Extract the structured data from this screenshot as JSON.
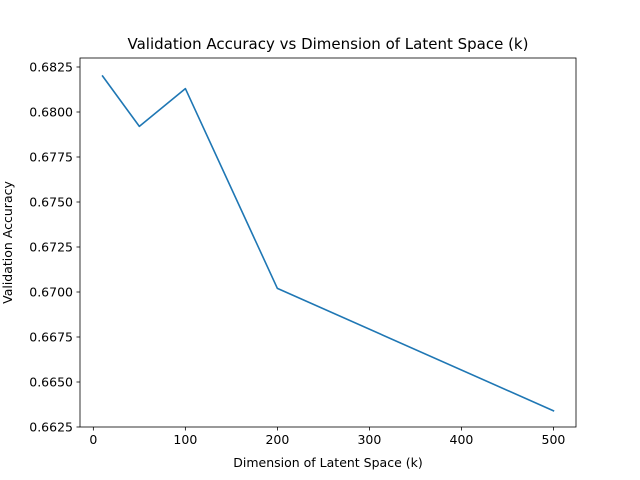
{
  "chart_data": {
    "type": "line",
    "title": "Validation Accuracy vs Dimension of Latent Space (k)",
    "xlabel": "Dimension of Latent Space (k)",
    "ylabel": "Validation Accuracy",
    "x": [
      10,
      50,
      100,
      200,
      500
    ],
    "series": [
      {
        "values": [
          0.682,
          0.6792,
          0.6813,
          0.6702,
          0.6634
        ],
        "color": "#1f77b4"
      }
    ],
    "xlim": [
      -14.5,
      524.5
    ],
    "ylim": [
      0.6625,
      0.683
    ],
    "xticks": [
      0,
      100,
      200,
      300,
      400,
      500
    ],
    "xtick_labels": [
      "0",
      "100",
      "200",
      "300",
      "400",
      "500"
    ],
    "yticks": [
      0.6625,
      0.665,
      0.6675,
      0.67,
      0.6725,
      0.675,
      0.6775,
      0.68,
      0.6825
    ],
    "ytick_labels": [
      "0.6625",
      "0.6650",
      "0.6675",
      "0.6700",
      "0.6725",
      "0.6750",
      "0.6775",
      "0.6800",
      "0.6825"
    ],
    "grid": false,
    "legend": "none"
  }
}
